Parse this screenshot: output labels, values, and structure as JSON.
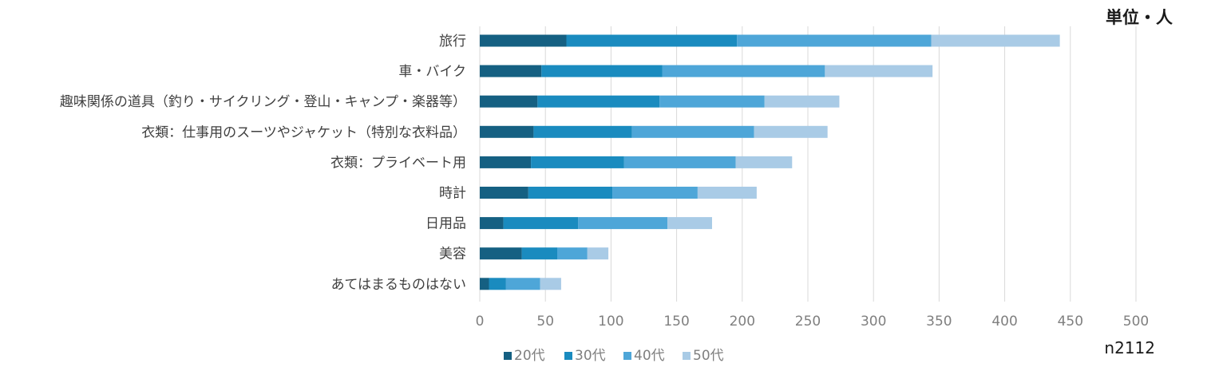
{
  "unit_note": "単位・人",
  "sample_note": "n2112",
  "colors": {
    "20代": "#156082",
    "30代": "#1a8bbf",
    "40代": "#4ea6d8",
    "50代": "#a9cbe6",
    "grid": "#d9d9d9"
  },
  "chart_data": {
    "type": "bar",
    "orientation": "horizontal",
    "stacked": true,
    "title": "",
    "xlabel": "",
    "ylabel": "",
    "xlim": [
      0,
      500
    ],
    "ticks": [
      "0",
      "50",
      "100",
      "150",
      "200",
      "250",
      "300",
      "350",
      "400",
      "450",
      "500"
    ],
    "grid": true,
    "legend_position": "bottom",
    "categories": [
      "旅行",
      "車・バイク",
      "趣味関係の道具（釣り・サイクリング・登山・キャンプ・楽器等）",
      "衣類：仕事用のスーツやジャケット（特別な衣料品）",
      "衣類：プライベート用",
      "時計",
      "日用品",
      "美容",
      "あてはまるものはない"
    ],
    "series": [
      {
        "name": "20代",
        "values": [
          66,
          47,
          44,
          41,
          39,
          37,
          18,
          32,
          7
        ]
      },
      {
        "name": "30代",
        "values": [
          130,
          92,
          93,
          75,
          71,
          64,
          57,
          27,
          13
        ]
      },
      {
        "name": "40代",
        "values": [
          148,
          124,
          80,
          93,
          85,
          65,
          68,
          23,
          26
        ]
      },
      {
        "name": "50代",
        "values": [
          98,
          82,
          57,
          56,
          43,
          45,
          34,
          16,
          16
        ]
      }
    ]
  }
}
